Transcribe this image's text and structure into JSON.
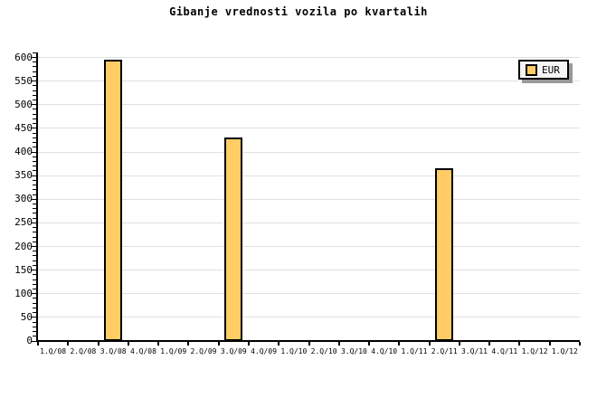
{
  "colors": {
    "background": "#FFFFFF",
    "bar_fill": "#FFCC66",
    "bar_border": "#000000",
    "grid": "#E0E0E0",
    "axis": "#000000",
    "legend_bg": "#F4F4F4",
    "legend_shadow": "#999999"
  },
  "legend": {
    "items": [
      {
        "label": "EUR",
        "color": "#FFCC66"
      }
    ]
  },
  "chart_data": {
    "type": "bar",
    "title": "Gibanje vrednosti vozila po kvartalih",
    "categories": [
      "1.Q/08",
      "2.Q/08",
      "3.Q/08",
      "4.Q/08",
      "1.Q/09",
      "2.Q/09",
      "3.Q/09",
      "4.Q/09",
      "1.Q/10",
      "2.Q/10",
      "3.Q/10",
      "4.Q/10",
      "1.Q/11",
      "2.Q/11",
      "3.Q/11",
      "4.Q/11",
      "1.Q/12",
      "1.Q/12"
    ],
    "series": [
      {
        "name": "EUR",
        "color": "#FFCC66",
        "values": [
          null,
          null,
          595,
          null,
          null,
          null,
          430,
          null,
          null,
          null,
          null,
          null,
          null,
          365,
          null,
          null,
          null,
          null
        ]
      }
    ],
    "xlabel": "",
    "ylabel": "",
    "ylim": [
      0,
      610
    ],
    "y_tick_step": 50,
    "y_minor_tick_step": 10,
    "y_tick_labels": [
      "0",
      "50",
      "100",
      "150",
      "200",
      "250",
      "300",
      "350",
      "400",
      "450",
      "500",
      "550",
      "600"
    ],
    "grid": true,
    "legend_position": "top-right"
  }
}
